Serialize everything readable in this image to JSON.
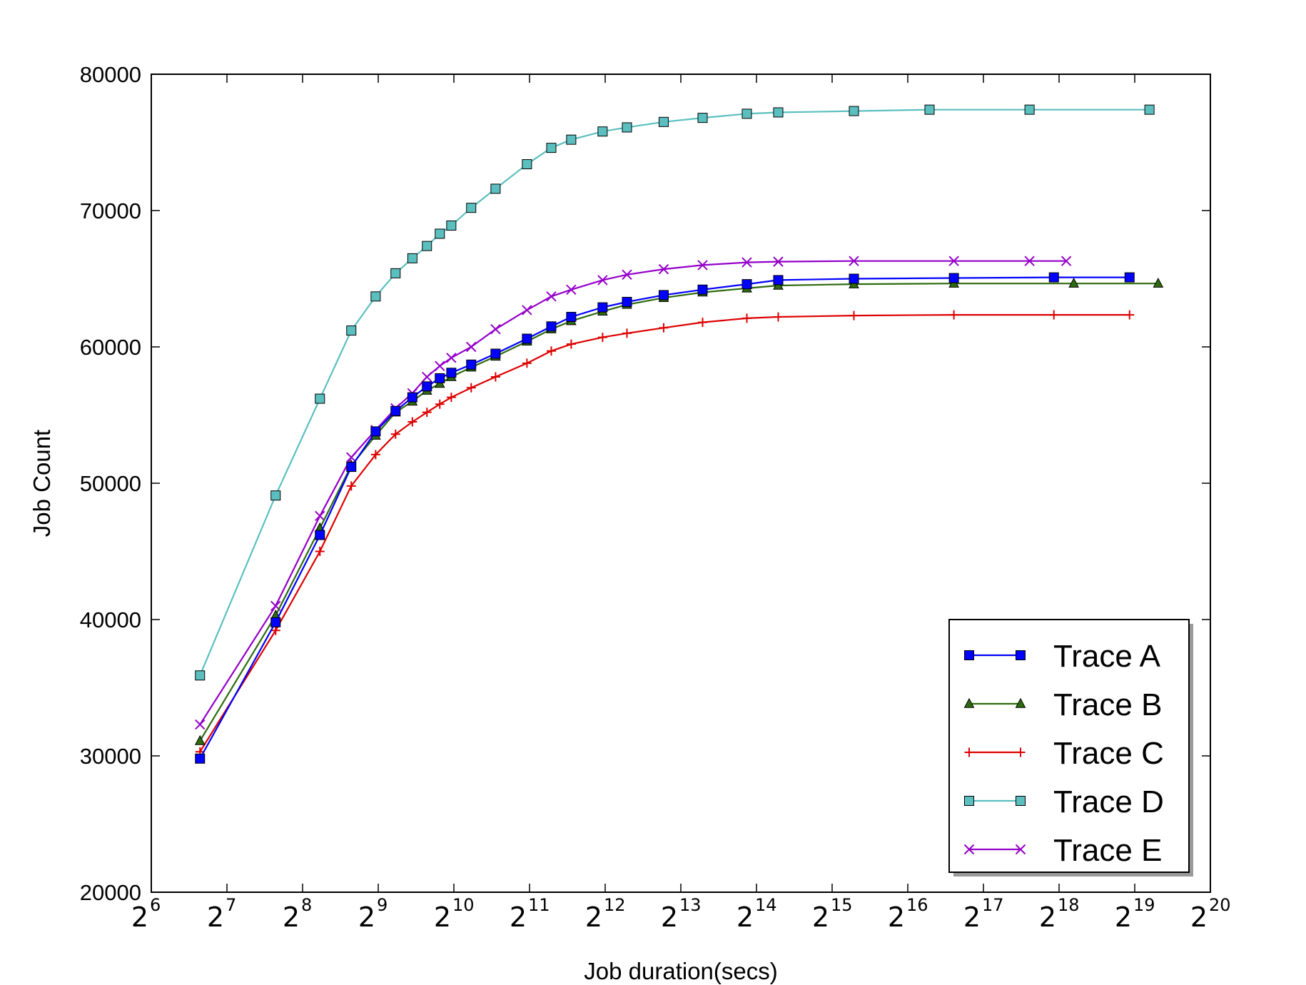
{
  "chart_data": {
    "type": "line",
    "title": "",
    "xlabel": "Job duration(secs)",
    "ylabel": "Job Count",
    "x_scale": "log2",
    "xlim": [
      64,
      1048576
    ],
    "ylim": [
      20000,
      80000
    ],
    "y_ticks": [
      "20000",
      "30000",
      "40000",
      "50000",
      "60000",
      "70000",
      "80000"
    ],
    "x_ticks": [
      {
        "base": "2",
        "exp": "6"
      },
      {
        "base": "2",
        "exp": "7"
      },
      {
        "base": "2",
        "exp": "8"
      },
      {
        "base": "2",
        "exp": "9"
      },
      {
        "base": "2",
        "exp": "10"
      },
      {
        "base": "2",
        "exp": "11"
      },
      {
        "base": "2",
        "exp": "12"
      },
      {
        "base": "2",
        "exp": "13"
      },
      {
        "base": "2",
        "exp": "14"
      },
      {
        "base": "2",
        "exp": "15"
      },
      {
        "base": "2",
        "exp": "16"
      },
      {
        "base": "2",
        "exp": "17"
      },
      {
        "base": "2",
        "exp": "18"
      },
      {
        "base": "2",
        "exp": "19"
      },
      {
        "base": "2",
        "exp": "20"
      }
    ],
    "grid": false,
    "legend_position": "bottom-right",
    "series": [
      {
        "name": "Trace A",
        "color": "#0000ff",
        "marker": "square",
        "points": [
          [
            100,
            29800
          ],
          [
            200,
            39800
          ],
          [
            300,
            46200
          ],
          [
            400,
            51200
          ],
          [
            500,
            53800
          ],
          [
            600,
            55300
          ],
          [
            700,
            56300
          ],
          [
            800,
            57100
          ],
          [
            900,
            57700
          ],
          [
            1000,
            58100
          ],
          [
            1200,
            58700
          ],
          [
            1500,
            59500
          ],
          [
            2000,
            60600
          ],
          [
            2500,
            61500
          ],
          [
            3000,
            62200
          ],
          [
            4000,
            62900
          ],
          [
            5000,
            63300
          ],
          [
            7000,
            63800
          ],
          [
            10000,
            64200
          ],
          [
            15000,
            64600
          ],
          [
            20000,
            64900
          ],
          [
            40000,
            65000
          ],
          [
            100000,
            65050
          ],
          [
            250000,
            65100
          ],
          [
            500000,
            65100
          ]
        ]
      },
      {
        "name": "Trace B",
        "color": "#2e6b0e",
        "marker": "triangle",
        "points": [
          [
            100,
            31100
          ],
          [
            200,
            40300
          ],
          [
            300,
            46700
          ],
          [
            400,
            51300
          ],
          [
            500,
            53500
          ],
          [
            600,
            55200
          ],
          [
            700,
            56000
          ],
          [
            800,
            56800
          ],
          [
            900,
            57300
          ],
          [
            1000,
            57800
          ],
          [
            1200,
            58500
          ],
          [
            1500,
            59300
          ],
          [
            2000,
            60400
          ],
          [
            2500,
            61300
          ],
          [
            3000,
            61900
          ],
          [
            4000,
            62600
          ],
          [
            5000,
            63100
          ],
          [
            7000,
            63600
          ],
          [
            10000,
            64000
          ],
          [
            15000,
            64300
          ],
          [
            20000,
            64500
          ],
          [
            40000,
            64600
          ],
          [
            100000,
            64650
          ],
          [
            300000,
            64650
          ],
          [
            650000,
            64650
          ]
        ]
      },
      {
        "name": "Trace C",
        "color": "#dd0000",
        "marker": "plus",
        "points": [
          [
            100,
            30300
          ],
          [
            200,
            39200
          ],
          [
            300,
            45000
          ],
          [
            400,
            49800
          ],
          [
            500,
            52100
          ],
          [
            600,
            53600
          ],
          [
            700,
            54500
          ],
          [
            800,
            55200
          ],
          [
            900,
            55800
          ],
          [
            1000,
            56300
          ],
          [
            1200,
            57000
          ],
          [
            1500,
            57800
          ],
          [
            2000,
            58800
          ],
          [
            2500,
            59700
          ],
          [
            3000,
            60200
          ],
          [
            4000,
            60700
          ],
          [
            5000,
            61000
          ],
          [
            7000,
            61400
          ],
          [
            10000,
            61800
          ],
          [
            15000,
            62100
          ],
          [
            20000,
            62200
          ],
          [
            40000,
            62300
          ],
          [
            100000,
            62350
          ],
          [
            250000,
            62350
          ],
          [
            500000,
            62350
          ]
        ]
      },
      {
        "name": "Trace D",
        "color": "#5bbfbf",
        "marker": "square",
        "points": [
          [
            100,
            35900
          ],
          [
            200,
            49100
          ],
          [
            300,
            56200
          ],
          [
            400,
            61200
          ],
          [
            500,
            63700
          ],
          [
            600,
            65400
          ],
          [
            700,
            66500
          ],
          [
            800,
            67400
          ],
          [
            900,
            68300
          ],
          [
            1000,
            68900
          ],
          [
            1200,
            70200
          ],
          [
            1500,
            71600
          ],
          [
            2000,
            73400
          ],
          [
            2500,
            74600
          ],
          [
            3000,
            75200
          ],
          [
            4000,
            75800
          ],
          [
            5000,
            76100
          ],
          [
            7000,
            76500
          ],
          [
            10000,
            76800
          ],
          [
            15000,
            77100
          ],
          [
            20000,
            77200
          ],
          [
            40000,
            77300
          ],
          [
            80000,
            77400
          ],
          [
            200000,
            77400
          ],
          [
            600000,
            77400
          ]
        ]
      },
      {
        "name": "Trace E",
        "color": "#9400c8",
        "marker": "x",
        "points": [
          [
            100,
            32300
          ],
          [
            200,
            41000
          ],
          [
            300,
            47600
          ],
          [
            400,
            51900
          ],
          [
            500,
            53900
          ],
          [
            600,
            55500
          ],
          [
            700,
            56600
          ],
          [
            800,
            57800
          ],
          [
            900,
            58600
          ],
          [
            1000,
            59200
          ],
          [
            1200,
            60000
          ],
          [
            1500,
            61300
          ],
          [
            2000,
            62700
          ],
          [
            2500,
            63700
          ],
          [
            3000,
            64200
          ],
          [
            4000,
            64900
          ],
          [
            5000,
            65300
          ],
          [
            7000,
            65700
          ],
          [
            10000,
            66000
          ],
          [
            15000,
            66200
          ],
          [
            20000,
            66250
          ],
          [
            40000,
            66300
          ],
          [
            100000,
            66300
          ],
          [
            200000,
            66300
          ],
          [
            280000,
            66300
          ]
        ]
      }
    ]
  }
}
